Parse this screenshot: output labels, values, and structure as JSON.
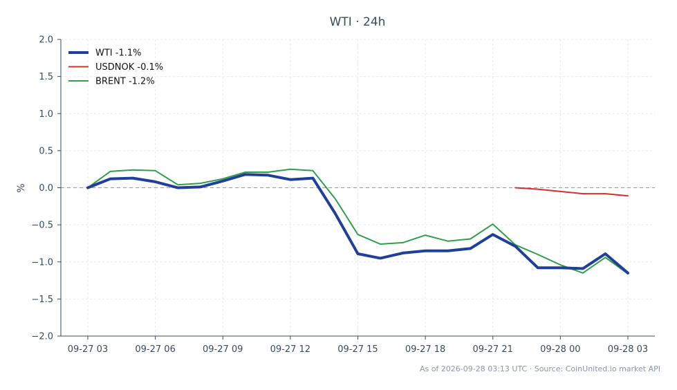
{
  "chart_data": {
    "type": "line",
    "title": "WTI · 24h",
    "ylabel": "%",
    "xlabel": "",
    "ylim": [
      -2.0,
      2.0
    ],
    "yticks": [
      -2.0,
      -1.5,
      -1.0,
      -0.5,
      0.0,
      0.5,
      1.0,
      1.5,
      2.0
    ],
    "ytick_labels": [
      "−2.0",
      "−1.5",
      "−1.0",
      "−0.5",
      "0.0",
      "0.5",
      "1.0",
      "1.5",
      "2.0"
    ],
    "x": [
      "09-27 03",
      "09-27 04",
      "09-27 05",
      "09-27 06",
      "09-27 07",
      "09-27 08",
      "09-27 09",
      "09-27 10",
      "09-27 11",
      "09-27 12",
      "09-27 13",
      "09-27 14",
      "09-27 15",
      "09-27 16",
      "09-27 17",
      "09-27 18",
      "09-27 19",
      "09-27 20",
      "09-27 21",
      "09-27 22",
      "09-27 23",
      "09-28 00",
      "09-28 01",
      "09-28 02",
      "09-28 03"
    ],
    "xticks": [
      "09-27 03",
      "09-27 06",
      "09-27 09",
      "09-27 12",
      "09-27 15",
      "09-27 18",
      "09-27 21",
      "09-28 00",
      "09-28 03"
    ],
    "grid": true,
    "baseline": 0.0,
    "legend_position": "top-left",
    "series": [
      {
        "name": "WTI -1.1%",
        "color": "#1f3f9a",
        "values": [
          0.0,
          0.12,
          0.13,
          0.08,
          0.0,
          0.01,
          0.09,
          0.18,
          0.17,
          0.11,
          0.13,
          -0.35,
          -0.89,
          -0.95,
          -0.88,
          -0.85,
          -0.85,
          -0.82,
          -0.63,
          -0.79,
          -1.08,
          -1.08,
          -1.09,
          -0.89,
          -1.15
        ]
      },
      {
        "name": "USDNOK -0.1%",
        "color": "#d62f2f",
        "values": [
          null,
          null,
          null,
          null,
          null,
          null,
          null,
          null,
          null,
          null,
          null,
          null,
          null,
          null,
          null,
          null,
          null,
          null,
          null,
          0.0,
          -0.02,
          -0.05,
          -0.08,
          -0.08,
          -0.11
        ]
      },
      {
        "name": "BRENT -1.2%",
        "color": "#2ca048",
        "values": [
          0.0,
          0.22,
          0.24,
          0.23,
          0.04,
          0.06,
          0.12,
          0.21,
          0.21,
          0.25,
          0.23,
          -0.15,
          -0.63,
          -0.76,
          -0.74,
          -0.64,
          -0.72,
          -0.69,
          -0.49,
          -0.77,
          -0.9,
          -1.04,
          -1.15,
          -0.94,
          -1.16
        ]
      }
    ]
  },
  "footer": {
    "note": "As of 2026-09-28 03:13 UTC · Source: CoinUnited.io market API"
  }
}
